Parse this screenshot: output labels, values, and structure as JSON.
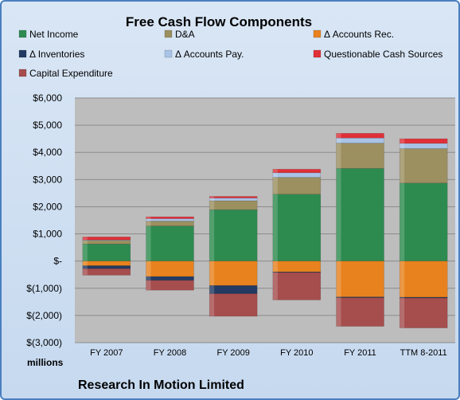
{
  "chart_data": {
    "type": "bar",
    "stacked": true,
    "title": "Free Cash Flow Components",
    "units_label": "millions",
    "company_label": "Research In Motion Limited",
    "categories": [
      "FY 2007",
      "FY 2008",
      "FY 2009",
      "FY 2010",
      "FY 2011",
      "TTM 8-2011"
    ],
    "y_ticks": [
      "$6,000",
      "$5,000",
      "$4,000",
      "$3,000",
      "$2,000",
      "$1,000",
      "$-",
      "$(1,000)",
      "$(2,000)",
      "$(3,000)"
    ],
    "ylim": [
      -3000,
      6000
    ],
    "grid": true,
    "legend_position": "top",
    "series": [
      {
        "name": "Net Income",
        "color": "#2e8b50",
        "values": [
          630,
          1290,
          1890,
          2460,
          3410,
          2870
        ]
      },
      {
        "name": "D&A",
        "color": "#9c8f60",
        "values": [
          130,
          180,
          330,
          620,
          930,
          1270
        ]
      },
      {
        "name": "Δ Accounts Rec.",
        "color": "#e8821e",
        "values": [
          -170,
          -570,
          -900,
          -400,
          -1320,
          -1330
        ]
      },
      {
        "name": "Δ Inventories",
        "color": "#233a63",
        "values": [
          -110,
          -140,
          -300,
          -20,
          -30,
          -30
        ]
      },
      {
        "name": "Δ Accounts Pay.",
        "color": "#a9c3e6",
        "values": [
          20,
          90,
          100,
          170,
          190,
          190
        ]
      },
      {
        "name": "Questionable Cash Sources",
        "color": "#e03038",
        "values": [
          110,
          70,
          60,
          130,
          170,
          170
        ]
      },
      {
        "name": "Capital Expenditure",
        "color": "#a64d4d",
        "values": [
          -240,
          -360,
          -830,
          -1010,
          -1050,
          -1100
        ]
      }
    ]
  }
}
